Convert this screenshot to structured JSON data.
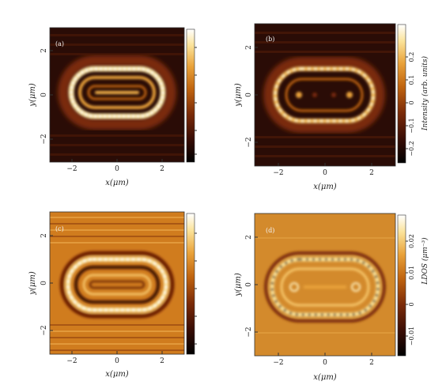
{
  "chart_data": [
    {
      "type": "heatmap",
      "panel_label": "(a)",
      "xlabel": "x(μm)",
      "ylabel": "y(μm)",
      "xticks": [
        "−2",
        "0",
        "2"
      ],
      "yticks": [
        "2",
        "0",
        "−2"
      ],
      "xlim": [
        -3,
        3
      ],
      "ylim": [
        -3,
        3
      ],
      "pattern": "stadium ring",
      "background": "#2a0c06",
      "colorbar_label": "",
      "colorbar_ticks": []
    },
    {
      "type": "heatmap",
      "panel_label": "(b)",
      "xlabel": "x(μm)",
      "ylabel": "y(μm)",
      "xticks": [
        "−2",
        "0",
        "2"
      ],
      "yticks": [
        "2",
        "0",
        "−2"
      ],
      "xlim": [
        -3,
        3
      ],
      "ylim": [
        -3,
        3
      ],
      "pattern": "stadium ring",
      "background": "#2a0c06",
      "colorbar_label": "Intensity (arb. units)",
      "colorbar_ticks": [
        "0.2",
        "0.1",
        "0",
        "−0.1",
        "−0.2"
      ]
    },
    {
      "type": "heatmap",
      "panel_label": "(c)",
      "xlabel": "x(μm)",
      "ylabel": "y(μm)",
      "xticks": [
        "−2",
        "0",
        "2"
      ],
      "yticks": [
        "2",
        "0",
        "−2"
      ],
      "xlim": [
        -3,
        3
      ],
      "ylim": [
        -3,
        3
      ],
      "pattern": "stadium ring",
      "background": "#d07c1e",
      "colorbar_label": "",
      "colorbar_ticks": []
    },
    {
      "type": "heatmap",
      "panel_label": "(d)",
      "xlabel": "x(μm)",
      "ylabel": "y(μm)",
      "xticks": [
        "−2",
        "0",
        "2"
      ],
      "yticks": [
        "2",
        "0",
        "−2"
      ],
      "xlim": [
        -3,
        3
      ],
      "ylim": [
        -3,
        3
      ],
      "pattern": "stadium ring",
      "background": "#d38a2c",
      "colorbar_label": "LDOS (μm⁻³)",
      "colorbar_ticks": [
        "0.02",
        "0.01",
        "0",
        "−0.01"
      ]
    }
  ],
  "colormap": [
    "#000000",
    "#3a0d05",
    "#7a2a08",
    "#c0640f",
    "#e9a23a",
    "#fbe39a",
    "#ffffff"
  ]
}
